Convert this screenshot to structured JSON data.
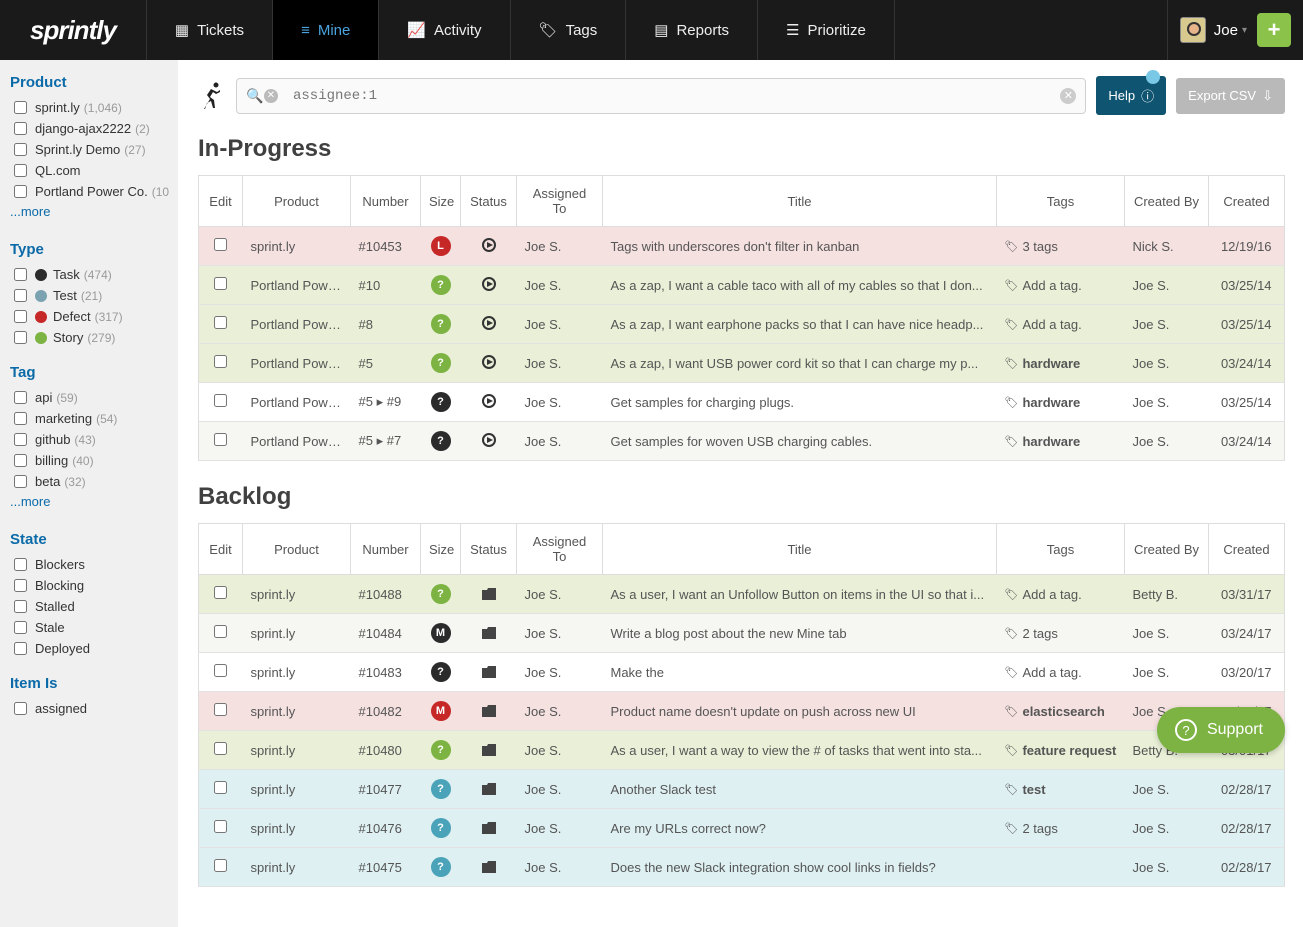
{
  "brand": "sprintly",
  "nav": {
    "tickets": "Tickets",
    "mine": "Mine",
    "activity": "Activity",
    "tags": "Tags",
    "reports": "Reports",
    "prioritize": "Prioritize"
  },
  "user": {
    "name": "Joe"
  },
  "search": {
    "value": "assignee:1"
  },
  "buttons": {
    "help": "Help",
    "export": "Export CSV",
    "support": "Support",
    "more": "...more"
  },
  "colors": {
    "badge_red": "#c62828",
    "badge_green": "#7cb342",
    "badge_black": "#2b2b2b",
    "badge_teal": "#4aa3b8",
    "type_task": "#2b2b2b",
    "type_test": "#7aa2b0",
    "type_defect": "#c62828",
    "type_story": "#7cb342"
  },
  "filters": {
    "product": {
      "title": "Product",
      "items": [
        {
          "label": "sprint.ly",
          "count": "(1,046)"
        },
        {
          "label": "django-ajax2222",
          "count": "(2)"
        },
        {
          "label": "Sprint.ly Demo",
          "count": "(27)"
        },
        {
          "label": "QL.com",
          "count": ""
        },
        {
          "label": "Portland Power Co.",
          "count": "(10"
        }
      ]
    },
    "type": {
      "title": "Type",
      "items": [
        {
          "label": "Task",
          "count": "(474)",
          "color": "#2b2b2b"
        },
        {
          "label": "Test",
          "count": "(21)",
          "color": "#7aa2b0"
        },
        {
          "label": "Defect",
          "count": "(317)",
          "color": "#c62828"
        },
        {
          "label": "Story",
          "count": "(279)",
          "color": "#7cb342"
        }
      ]
    },
    "tag": {
      "title": "Tag",
      "items": [
        {
          "label": "api",
          "count": "(59)"
        },
        {
          "label": "marketing",
          "count": "(54)"
        },
        {
          "label": "github",
          "count": "(43)"
        },
        {
          "label": "billing",
          "count": "(40)"
        },
        {
          "label": "beta",
          "count": "(32)"
        }
      ]
    },
    "state": {
      "title": "State",
      "items": [
        {
          "label": "Blockers"
        },
        {
          "label": "Blocking"
        },
        {
          "label": "Stalled"
        },
        {
          "label": "Stale"
        },
        {
          "label": "Deployed"
        }
      ]
    },
    "itemis": {
      "title": "Item Is",
      "items": [
        {
          "label": "assigned"
        }
      ]
    }
  },
  "sections": {
    "inprogress": {
      "title": "In-Progress",
      "headers": [
        "Edit",
        "Product",
        "Number",
        "Size",
        "Status",
        "Assigned To",
        "Title",
        "Tags",
        "Created By",
        "Created"
      ],
      "rows": [
        {
          "rowclass": "row-pink",
          "product": "sprint.ly",
          "number": "#10453",
          "size": "L",
          "size_color": "#c62828",
          "status": "play",
          "assignee": "Joe S.",
          "title": "Tags with underscores don't filter in kanban",
          "tag": "3 tags",
          "tag_bold": false,
          "cby": "Nick S.",
          "created": "12/19/16"
        },
        {
          "rowclass": "row-green",
          "product": "Portland Power Co.",
          "number": "#10",
          "size": "?",
          "size_color": "#7cb342",
          "status": "play",
          "assignee": "Joe S.",
          "title": "As a zap, I want a cable taco with all of my cables so that I don...",
          "tag": "Add a tag.",
          "tag_bold": false,
          "cby": "Joe S.",
          "created": "03/25/14"
        },
        {
          "rowclass": "row-green",
          "product": "Portland Power Co.",
          "number": "#8",
          "size": "?",
          "size_color": "#7cb342",
          "status": "play",
          "assignee": "Joe S.",
          "title": "As a zap, I want earphone packs so that I can have nice headp...",
          "tag": "Add a tag.",
          "tag_bold": false,
          "cby": "Joe S.",
          "created": "03/25/14"
        },
        {
          "rowclass": "row-green",
          "product": "Portland Power Co.",
          "number": "#5",
          "size": "?",
          "size_color": "#7cb342",
          "status": "play",
          "assignee": "Joe S.",
          "title": "As a zap, I want USB power cord kit so that I can charge my p...",
          "tag": "hardware",
          "tag_bold": true,
          "cby": "Joe S.",
          "created": "03/24/14"
        },
        {
          "rowclass": "row-plain",
          "product": "Portland Power Co.",
          "number": "#5 ▸ #9",
          "size": "?",
          "size_color": "#2b2b2b",
          "status": "play",
          "assignee": "Joe S.",
          "title": "Get samples for charging plugs.",
          "tag": "hardware",
          "tag_bold": true,
          "cby": "Joe S.",
          "created": "03/25/14"
        },
        {
          "rowclass": "row-alt",
          "product": "Portland Power Co.",
          "number": "#5 ▸ #7",
          "size": "?",
          "size_color": "#2b2b2b",
          "status": "play",
          "assignee": "Joe S.",
          "title": "Get samples for woven USB charging cables.",
          "tag": "hardware",
          "tag_bold": true,
          "cby": "Joe S.",
          "created": "03/24/14"
        }
      ]
    },
    "backlog": {
      "title": "Backlog",
      "headers": [
        "Edit",
        "Product",
        "Number",
        "Size",
        "Status",
        "Assigned To",
        "Title",
        "Tags",
        "Created By",
        "Created"
      ],
      "rows": [
        {
          "rowclass": "row-green",
          "product": "sprint.ly",
          "number": "#10488",
          "size": "?",
          "size_color": "#7cb342",
          "status": "folder",
          "assignee": "Joe S.",
          "title": "As a user, I want an Unfollow Button on items in the UI so that i...",
          "tag": "Add a tag.",
          "tag_bold": false,
          "cby": "Betty B.",
          "created": "03/31/17"
        },
        {
          "rowclass": "row-alt",
          "product": "sprint.ly",
          "number": "#10484",
          "size": "M",
          "size_color": "#2b2b2b",
          "status": "folder",
          "assignee": "Joe S.",
          "title": "Write a blog post about the new Mine tab",
          "tag": "2 tags",
          "tag_bold": false,
          "cby": "Joe S.",
          "created": "03/24/17"
        },
        {
          "rowclass": "row-plain",
          "product": "sprint.ly",
          "number": "#10483",
          "size": "?",
          "size_color": "#2b2b2b",
          "status": "folder",
          "assignee": "Joe S.",
          "title": "Make the",
          "tag": "Add a tag.",
          "tag_bold": false,
          "cby": "Joe S.",
          "created": "03/20/17"
        },
        {
          "rowclass": "row-pink",
          "product": "sprint.ly",
          "number": "#10482",
          "size": "M",
          "size_color": "#c62828",
          "status": "folder",
          "assignee": "Joe S.",
          "title": "Product name doesn't update on push across new UI",
          "tag": "elasticsearch",
          "tag_bold": true,
          "cby": "Joe S.",
          "created": "03/20/17"
        },
        {
          "rowclass": "row-green",
          "product": "sprint.ly",
          "number": "#10480",
          "size": "?",
          "size_color": "#7cb342",
          "status": "folder",
          "assignee": "Joe S.",
          "title": "As a user, I want a way to view the # of tasks that went into sta...",
          "tag": "feature request",
          "tag_bold": true,
          "cby": "Betty B.",
          "created": "03/01/17"
        },
        {
          "rowclass": "row-blue",
          "product": "sprint.ly",
          "number": "#10477",
          "size": "?",
          "size_color": "#4aa3b8",
          "status": "folder",
          "assignee": "Joe S.",
          "title": "Another Slack test",
          "tag": "test",
          "tag_bold": true,
          "cby": "Joe S.",
          "created": "02/28/17"
        },
        {
          "rowclass": "row-blue",
          "product": "sprint.ly",
          "number": "#10476",
          "size": "?",
          "size_color": "#4aa3b8",
          "status": "folder",
          "assignee": "Joe S.",
          "title": "Are my URLs correct now?",
          "tag": "2 tags",
          "tag_bold": false,
          "cby": "Joe S.",
          "created": "02/28/17"
        },
        {
          "rowclass": "row-blue",
          "product": "sprint.ly",
          "number": "#10475",
          "size": "?",
          "size_color": "#4aa3b8",
          "status": "folder",
          "assignee": "Joe S.",
          "title": "Does the new Slack integration show cool links in fields?",
          "tag": "",
          "tag_bold": false,
          "cby": "Joe S.",
          "created": "02/28/17"
        }
      ]
    }
  }
}
